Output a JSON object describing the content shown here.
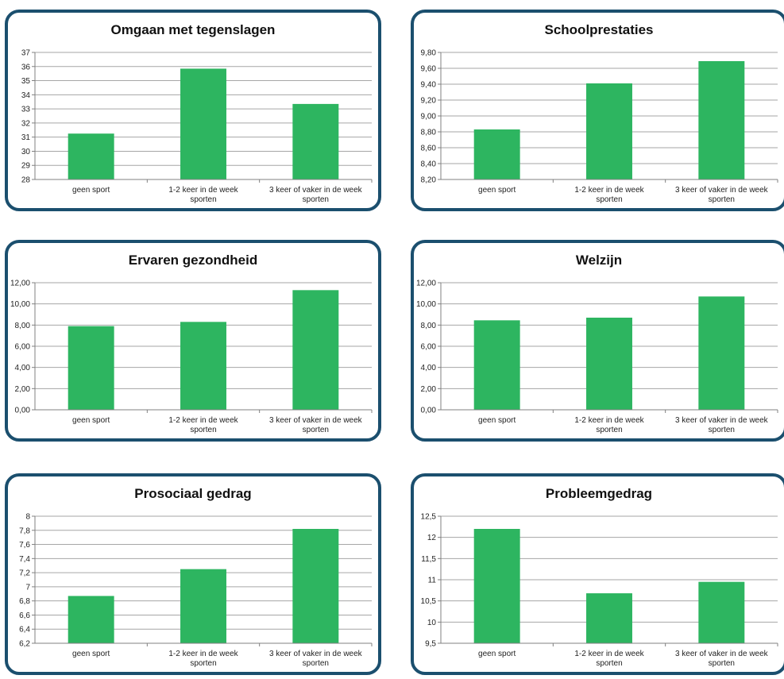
{
  "style": {
    "bar_color": "#2db560",
    "border_color": "#1b4f6e",
    "grid_color": "#a6a6a6"
  },
  "chart_data": [
    {
      "type": "bar",
      "title": "Omgaan met tegenslagen",
      "categories": [
        [
          "geen sport"
        ],
        [
          "1-2 keer in de week",
          "sporten"
        ],
        [
          "3 keer of vaker in de week",
          "sporten"
        ]
      ],
      "values": [
        31.25,
        35.85,
        33.35
      ],
      "ylim": [
        28,
        37
      ],
      "yticks": [
        "28",
        "29",
        "30",
        "31",
        "32",
        "33",
        "34",
        "35",
        "36",
        "37"
      ]
    },
    {
      "type": "bar",
      "title": "Schoolprestaties",
      "categories": [
        [
          "geen sport"
        ],
        [
          "1-2 keer in de week",
          "sporten"
        ],
        [
          "3 keer of vaker in de week",
          "sporten"
        ]
      ],
      "values": [
        8.83,
        9.41,
        9.69
      ],
      "ylim": [
        8.2,
        9.8
      ],
      "yticks": [
        "8,20",
        "8,40",
        "8,60",
        "8,80",
        "9,00",
        "9,20",
        "9,40",
        "9,60",
        "9,80"
      ]
    },
    {
      "type": "bar",
      "title": "Ervaren gezondheid",
      "categories": [
        [
          "geen sport"
        ],
        [
          "1-2 keer in de week",
          "sporten"
        ],
        [
          "3 keer of vaker in de week",
          "sporten"
        ]
      ],
      "values": [
        7.9,
        8.3,
        11.3
      ],
      "ylim": [
        0,
        12
      ],
      "yticks": [
        "0,00",
        "2,00",
        "4,00",
        "6,00",
        "8,00",
        "10,00",
        "12,00"
      ]
    },
    {
      "type": "bar",
      "title": "Welzijn",
      "categories": [
        [
          "geen sport"
        ],
        [
          "1-2 keer in de week",
          "sporten"
        ],
        [
          "3 keer of vaker in de week",
          "sporten"
        ]
      ],
      "values": [
        8.45,
        8.7,
        10.7
      ],
      "ylim": [
        0,
        12
      ],
      "yticks": [
        "0,00",
        "2,00",
        "4,00",
        "6,00",
        "8,00",
        "10,00",
        "12,00"
      ]
    },
    {
      "type": "bar",
      "title": "Prosociaal gedrag",
      "categories": [
        [
          "geen sport"
        ],
        [
          "1-2 keer in de week",
          "sporten"
        ],
        [
          "3 keer of vaker in de week",
          "sporten"
        ]
      ],
      "values": [
        6.87,
        7.25,
        7.82
      ],
      "ylim": [
        6.2,
        8
      ],
      "yticks": [
        "6,2",
        "6,4",
        "6,6",
        "6,8",
        "7",
        "7,2",
        "7,4",
        "7,6",
        "7,8",
        "8"
      ]
    },
    {
      "type": "bar",
      "title": "Probleemgedrag",
      "categories": [
        [
          "geen sport"
        ],
        [
          "1-2 keer in de week",
          "sporten"
        ],
        [
          "3 keer of vaker in de week",
          "sporten"
        ]
      ],
      "values": [
        12.2,
        10.68,
        10.95
      ],
      "ylim": [
        9.5,
        12.5
      ],
      "yticks": [
        "9,5",
        "10",
        "10,5",
        "11",
        "11,5",
        "12",
        "12,5"
      ]
    }
  ]
}
